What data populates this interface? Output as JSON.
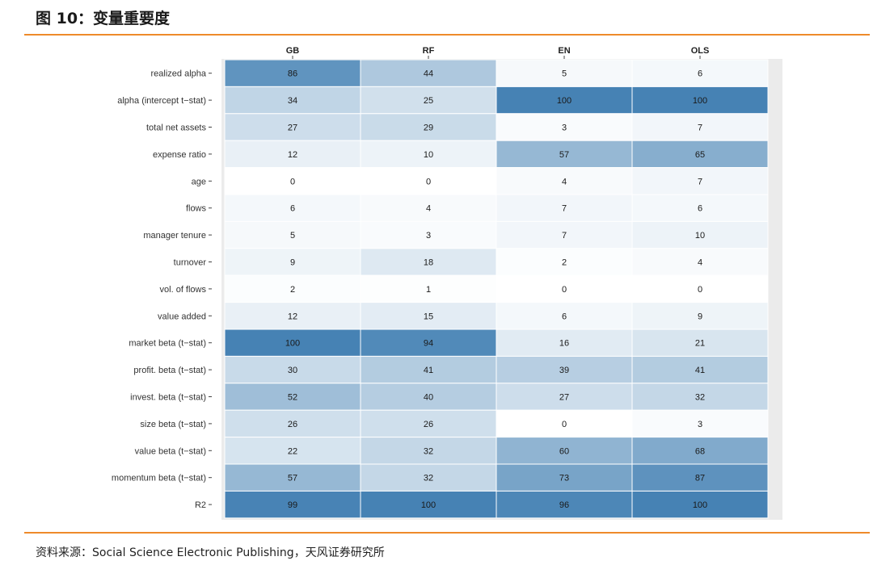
{
  "figure_title": "图 10：变量重要度",
  "source_note": "资料来源：Social Science Electronic Publishing，天风证券研究所",
  "colors": {
    "accent_rule": "#ee8a2a",
    "cell_low": "#ffffff",
    "cell_high": "#4682b4",
    "panel_bg": "#ebebeb"
  },
  "chart_data": {
    "type": "heatmap",
    "title": "变量重要度",
    "columns": [
      "GB",
      "RF",
      "EN",
      "OLS"
    ],
    "rows": [
      "realized alpha",
      "alpha (intercept t−stat)",
      "total net assets",
      "expense ratio",
      "age",
      "flows",
      "manager tenure",
      "turnover",
      "vol. of flows",
      "value added",
      "market beta (t−stat)",
      "profit. beta (t−stat)",
      "invest. beta (t−stat)",
      "size beta (t−stat)",
      "value beta (t−stat)",
      "momentum beta (t−stat)",
      "R2"
    ],
    "values": [
      [
        86,
        44,
        5,
        6
      ],
      [
        34,
        25,
        100,
        100
      ],
      [
        27,
        29,
        3,
        7
      ],
      [
        12,
        10,
        57,
        65
      ],
      [
        0,
        0,
        4,
        7
      ],
      [
        6,
        4,
        7,
        6
      ],
      [
        5,
        3,
        7,
        10
      ],
      [
        9,
        18,
        2,
        4
      ],
      [
        2,
        1,
        0,
        0
      ],
      [
        12,
        15,
        6,
        9
      ],
      [
        100,
        94,
        16,
        21
      ],
      [
        30,
        41,
        39,
        41
      ],
      [
        52,
        40,
        27,
        32
      ],
      [
        26,
        26,
        0,
        3
      ],
      [
        22,
        32,
        60,
        68
      ],
      [
        57,
        32,
        73,
        87
      ],
      [
        99,
        100,
        96,
        100
      ]
    ],
    "value_range": [
      0,
      100
    ]
  }
}
